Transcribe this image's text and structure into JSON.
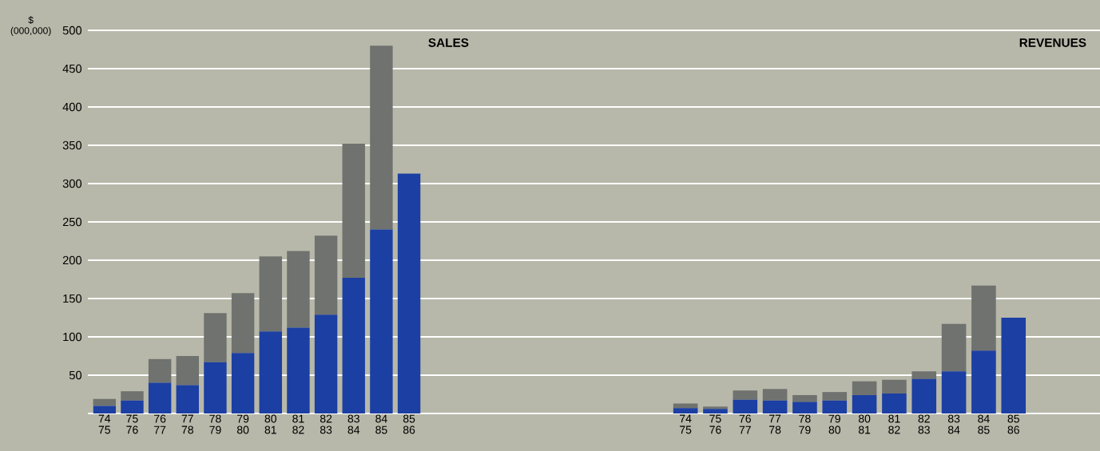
{
  "chart_data": [
    {
      "type": "bar",
      "title": "SALES",
      "ylabel": "$ (000,000)",
      "stacked": true,
      "grid": "y",
      "categories": [
        "74 75",
        "75 76",
        "76 77",
        "77 78",
        "78 79",
        "79 80",
        "80 81",
        "81 82",
        "82 83",
        "83 84",
        "84 85",
        "85 86"
      ],
      "series": [
        {
          "color": "#1c3fa3",
          "values": [
            10,
            17,
            40,
            37,
            67,
            79,
            107,
            112,
            129,
            177,
            240,
            313
          ]
        },
        {
          "color": "#6f726e",
          "values": [
            9,
            12,
            31,
            38,
            64,
            78,
            98,
            100,
            103,
            175,
            240,
            null
          ]
        }
      ],
      "ylim": [
        0,
        500
      ],
      "yticks": [
        {
          "value": 0,
          "label": null
        },
        50,
        100,
        150,
        200,
        250,
        300,
        350,
        400,
        450,
        500
      ]
    },
    {
      "type": "bar",
      "title": "REVENUES",
      "stacked": true,
      "grid": "y",
      "tick_labels": "x",
      "categories": [
        "74 75",
        "75 76",
        "76 77",
        "77 78",
        "78 79",
        "79 80",
        "80 81",
        "81 82",
        "82 83",
        "83 84",
        "84 85",
        "85 86"
      ],
      "series": [
        {
          "color": "#1c3fa3",
          "values": [
            7,
            6,
            18,
            17,
            15,
            17,
            24,
            26,
            45,
            55,
            82,
            125
          ]
        },
        {
          "color": "#6f726e",
          "values": [
            6,
            3,
            12,
            15,
            9,
            11,
            18,
            18,
            10,
            62,
            85,
            null
          ]
        }
      ],
      "ylim": [
        0,
        500
      ],
      "yticks": [
        {
          "value": 0,
          "label": null
        },
        50,
        100,
        150,
        200,
        250,
        300,
        350,
        400,
        450,
        500
      ]
    }
  ]
}
